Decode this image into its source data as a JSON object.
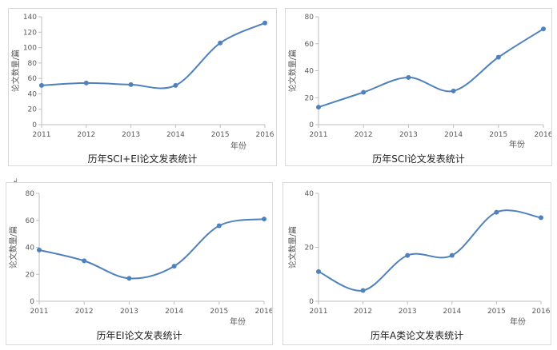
{
  "stray_mark": "↲",
  "chart_data": [
    {
      "type": "line",
      "title": "历年SCI+EI论文发表统计",
      "xlabel": "年份",
      "ylabel": "论文数量/篇",
      "categories": [
        "2011",
        "2012",
        "2013",
        "2014",
        "2015",
        "2016"
      ],
      "series": [
        {
          "values": [
            51,
            54,
            52,
            51,
            106,
            132
          ]
        }
      ],
      "ylim": [
        0,
        140
      ],
      "yticks": [
        0,
        20,
        40,
        60,
        80,
        100,
        120,
        140
      ],
      "grid": false,
      "line_color": "#4f81bd",
      "smooth": true
    },
    {
      "type": "line",
      "title": "历年SCI论文发表统计",
      "xlabel": "年份",
      "ylabel": "论文数量/篇",
      "categories": [
        "2011",
        "2012",
        "2013",
        "2014",
        "2015",
        "2016"
      ],
      "series": [
        {
          "values": [
            13,
            24,
            35,
            25,
            50,
            71
          ]
        }
      ],
      "ylim": [
        0,
        80
      ],
      "yticks": [
        0,
        20,
        40,
        60,
        80
      ],
      "grid": false,
      "line_color": "#4f81bd",
      "smooth": true
    },
    {
      "type": "line",
      "title": "历年EI论文发表统计",
      "xlabel": "年份",
      "ylabel": "论文数量/篇",
      "categories": [
        "2011",
        "2012",
        "2013",
        "2014",
        "2015",
        "2016"
      ],
      "series": [
        {
          "values": [
            38,
            30,
            17,
            26,
            56,
            61
          ]
        }
      ],
      "ylim": [
        0,
        80
      ],
      "yticks": [
        0,
        20,
        40,
        60,
        80
      ],
      "grid": false,
      "line_color": "#4f81bd",
      "smooth": true
    },
    {
      "type": "line",
      "title": "历年A类论文发表统计",
      "xlabel": "年份",
      "ylabel": "论文数量/篇",
      "categories": [
        "2011",
        "2012",
        "2013",
        "2014",
        "2015",
        "2016"
      ],
      "series": [
        {
          "values": [
            11,
            4,
            17,
            17,
            33,
            31
          ]
        }
      ],
      "ylim": [
        0,
        40
      ],
      "yticks": [
        0,
        20,
        40
      ],
      "grid": false,
      "line_color": "#4f81bd",
      "smooth": true
    }
  ]
}
